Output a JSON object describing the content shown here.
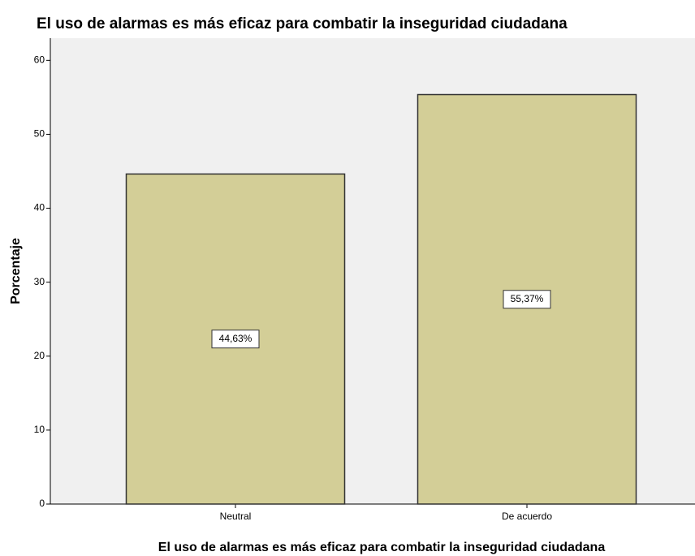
{
  "chart_data": {
    "type": "bar",
    "title": "El uso de alarmas es más eficaz para combatir la inseguridad ciudadana",
    "x_label": "El uso de alarmas es más eficaz para combatir la inseguridad ciudadana",
    "y_label": "Porcentaje",
    "categories": [
      "Neutral",
      "De acuerdo"
    ],
    "values": [
      44.63,
      55.37
    ],
    "value_labels": [
      "44,63%",
      "55,37%"
    ],
    "color": "#d3ce97",
    "ylim": [
      0,
      63
    ],
    "yticks": [
      0,
      10,
      20,
      30,
      40,
      50,
      60
    ],
    "grid": false
  }
}
